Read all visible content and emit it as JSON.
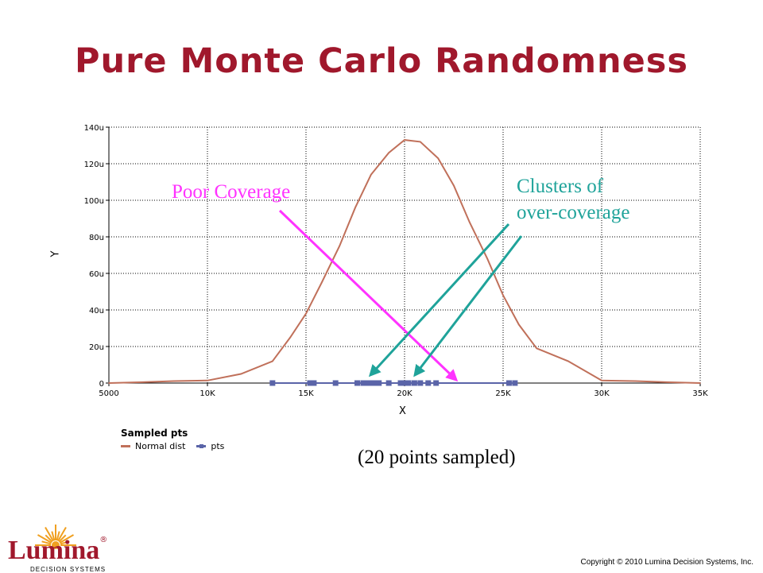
{
  "slide": {
    "title": "Pure Monte Carlo Randomness",
    "title_color": "#a0182c",
    "annotation_poor": "Poor Coverage",
    "annotation_poor_color": "#ff33ff",
    "annotation_clusters_line1": "Clusters of",
    "annotation_clusters_line2": "over-coverage",
    "annotation_clusters_color": "#1fa39a",
    "note": "(20 points sampled)",
    "copyright": "Copyright © 2010 Lumina Decision Systems, Inc.",
    "logo": {
      "name": "Lumina",
      "reg": "®",
      "subtitle": "DECISION SYSTEMS",
      "sun_color": "#f0a020"
    }
  },
  "chart_data": {
    "type": "line",
    "xlabel": "X",
    "ylabel": "Y",
    "xlim": [
      5000,
      35000
    ],
    "ylim": [
      0,
      0.00014
    ],
    "x_ticks": [
      5000,
      10000,
      15000,
      20000,
      25000,
      30000,
      35000
    ],
    "x_tick_labels": [
      "5000",
      "10K",
      "15K",
      "20K",
      "25K",
      "30K",
      "35K"
    ],
    "y_ticks": [
      0,
      2e-05,
      4e-05,
      6e-05,
      8e-05,
      0.0001,
      0.00012,
      0.00014
    ],
    "y_tick_labels": [
      "0",
      "20u",
      "40u",
      "60u",
      "80u",
      "100u",
      "120u",
      "140u"
    ],
    "grid": true,
    "legend_title": "Sampled pts",
    "legend_position": "bottom-left",
    "series": [
      {
        "name": "Normal dist",
        "color": "#c0705a",
        "x": [
          5000,
          6700,
          8300,
          10000,
          11700,
          13300,
          14200,
          15000,
          15800,
          16700,
          17500,
          18300,
          19200,
          20000,
          20800,
          21700,
          22500,
          23300,
          24200,
          25000,
          25800,
          26700,
          28300,
          30000,
          31700,
          33300,
          35000
        ],
        "y": [
          0,
          5e-07,
          1.1e-06,
          1.4e-06,
          5e-06,
          1.19e-05,
          2.5e-05,
          3.8e-05,
          5.5e-05,
          7.5e-05,
          9.6e-05,
          0.000114,
          0.000126,
          0.000133,
          0.000132,
          0.000123,
          0.000108,
          8.8e-05,
          6.8e-05,
          4.8e-05,
          3.2e-05,
          1.9e-05,
          1.2e-05,
          1.4e-06,
          1.1e-06,
          5e-07,
          0
        ]
      },
      {
        "name": "pts",
        "color": "#5a64a8",
        "x": [
          13300,
          15200,
          15400,
          16500,
          17600,
          17900,
          18100,
          18300,
          18500,
          18700,
          19200,
          19800,
          20000,
          20200,
          20500,
          20800,
          21200,
          21600,
          25300,
          25600
        ],
        "y": [
          0,
          0,
          0,
          0,
          0,
          0,
          0,
          0,
          0,
          0,
          0,
          0,
          0,
          0,
          0,
          0,
          0,
          0,
          0,
          0
        ]
      }
    ]
  }
}
